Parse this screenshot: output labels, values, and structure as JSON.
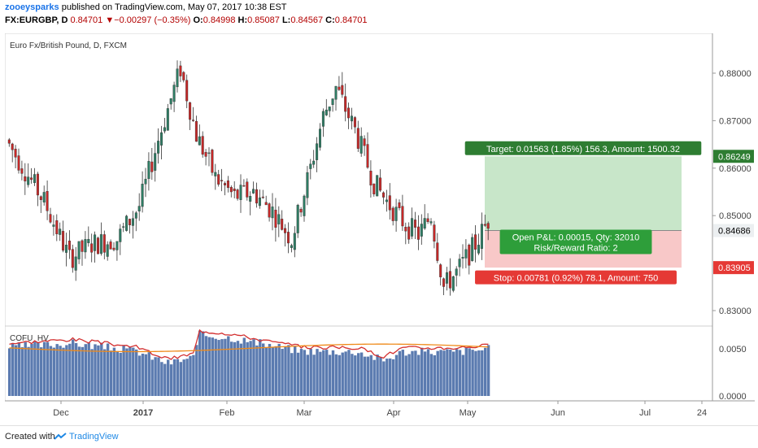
{
  "header": {
    "user": "zooeysparks",
    "published": "published on TradingView.com, May 07, 2017 10:38 EST",
    "symbol": "FX:EURGBP, D",
    "last": "0.84701",
    "arrow": "▼",
    "change": "−0.00297 (−0.35%)",
    "o_label": "O:",
    "o": "0.84998",
    "h_label": "H:",
    "h": "0.85087",
    "l_label": "L:",
    "l": "0.84567",
    "c_label": "C:",
    "c": "0.84701"
  },
  "footer": {
    "created": "Created with",
    "brand": "TradingView",
    "icon": "tradingview-cloud-icon"
  },
  "colors": {
    "up": "#2e7d64",
    "down": "#c62828",
    "target": "#c8e6c9",
    "stop": "#f8c8c8",
    "volume": "#5b7bb0",
    "hv_fast": "#d32f2f",
    "hv_slow": "#ef8a1a"
  },
  "chart_data": {
    "type": "candlestick",
    "title": "Euro Fx/British Pound, D, FXCM",
    "y_ticks": [
      "0.88000",
      "0.87000",
      "0.86000",
      "0.85000",
      "0.83000"
    ],
    "ylim": [
      0.827,
      0.888
    ],
    "x_ticks": [
      "Dec",
      "2017",
      "Feb",
      "Mar",
      "Apr",
      "May",
      "Jun",
      "Jul",
      "24"
    ],
    "price_labels": {
      "target": "0.86249",
      "current": "0.84686",
      "stop": "0.83905"
    },
    "position": {
      "target_text": "Target: 0.01563 (1.85%) 156.3, Amount: 1500.32",
      "open_text": "Open P&L: 0.00015, Qty: 32010",
      "rr_text": "Risk/Reward Ratio: 2",
      "stop_text": "Stop: 0.00781 (0.92%) 78.1, Amount: 750",
      "entry": 0.84686,
      "target": 0.86249,
      "stop": 0.83905
    },
    "indicator": {
      "name": "COFU_HV",
      "y_ticks": [
        "0.0050",
        "0.0000"
      ],
      "ylim": [
        -0.0002,
        0.0078
      ]
    }
  }
}
